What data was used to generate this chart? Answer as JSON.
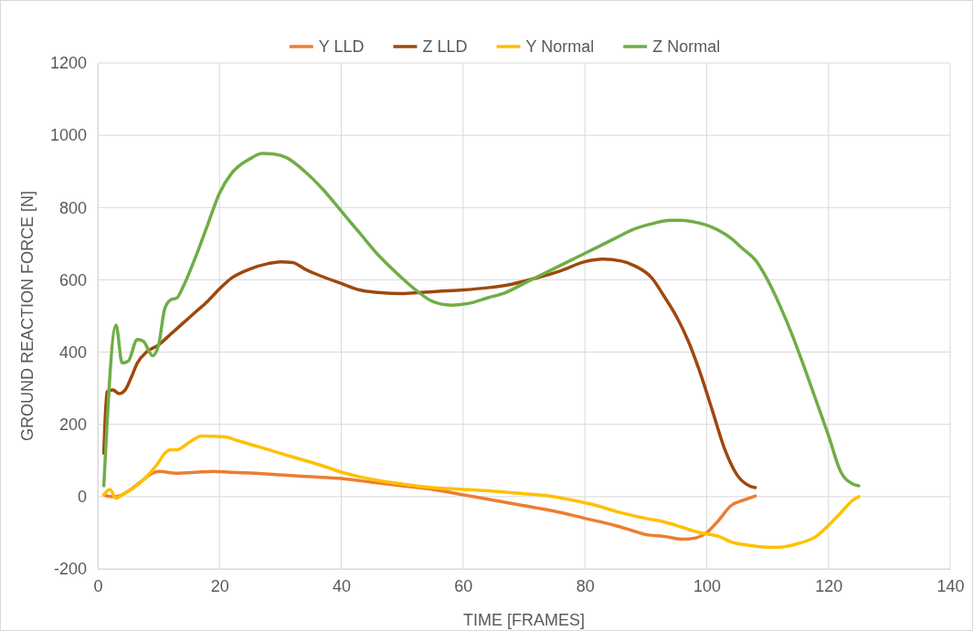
{
  "chart_data": {
    "type": "line",
    "xlabel": "TIME [FRAMES]",
    "ylabel": "GROUND REACTION FORCE [N]",
    "xlim": [
      0,
      140
    ],
    "xticks": [
      0,
      20,
      40,
      60,
      80,
      100,
      120,
      140
    ],
    "ylim": [
      -200,
      1200
    ],
    "yticks": [
      -200,
      0,
      200,
      400,
      600,
      800,
      1000,
      1200
    ],
    "grid": true,
    "legend": "top",
    "marker": "none",
    "line_style": "solid",
    "series": [
      {
        "name": "Y LLD",
        "color": "#ed7d31",
        "x": [
          1,
          2,
          3,
          5,
          7,
          9,
          10,
          13,
          16,
          19,
          22,
          26,
          30,
          35,
          40,
          45,
          50,
          55,
          60,
          65,
          70,
          75,
          80,
          85,
          88,
          90,
          93,
          96,
          98,
          100,
          102,
          104,
          106,
          108
        ],
        "values": [
          5,
          0,
          0,
          15,
          40,
          65,
          70,
          65,
          67,
          70,
          67,
          65,
          60,
          55,
          50,
          40,
          30,
          20,
          5,
          -10,
          -25,
          -40,
          -60,
          -80,
          -95,
          -105,
          -110,
          -118,
          -115,
          -100,
          -65,
          -25,
          -10,
          2
        ]
      },
      {
        "name": "Z LLD",
        "color": "#9e480e",
        "x": [
          1,
          1.5,
          2.5,
          3.5,
          4.5,
          5.5,
          6.5,
          8,
          10,
          12,
          14,
          16,
          18,
          20,
          22,
          25,
          28,
          30,
          32,
          34,
          36,
          40,
          43,
          46,
          50,
          53,
          56,
          60,
          64,
          68,
          72,
          76,
          80,
          83,
          86,
          88,
          91,
          93,
          95,
          97,
          99,
          101,
          103,
          105,
          107,
          108
        ],
        "values": [
          120,
          290,
          295,
          285,
          295,
          330,
          370,
          400,
          420,
          450,
          480,
          510,
          540,
          575,
          605,
          630,
          645,
          650,
          648,
          630,
          615,
          590,
          572,
          565,
          562,
          565,
          568,
          572,
          578,
          588,
          605,
          625,
          650,
          657,
          652,
          640,
          605,
          555,
          500,
          430,
          340,
          235,
          130,
          60,
          30,
          25
        ]
      },
      {
        "name": "Y Normal",
        "color": "#ffc000",
        "x": [
          1,
          2,
          3,
          4,
          6,
          8,
          10,
          11,
          12,
          13,
          15,
          17,
          19,
          21,
          23,
          25,
          28,
          31,
          34,
          37,
          40,
          43,
          47,
          50,
          55,
          60,
          65,
          70,
          74,
          78,
          82,
          86,
          90,
          93,
          96,
          99,
          102,
          104,
          107,
          110,
          112,
          115,
          118,
          120,
          122,
          124,
          125
        ],
        "values": [
          5,
          20,
          -5,
          5,
          25,
          55,
          95,
          120,
          130,
          130,
          150,
          168,
          167,
          165,
          155,
          145,
          130,
          115,
          100,
          85,
          68,
          55,
          42,
          35,
          25,
          20,
          15,
          8,
          2,
          -10,
          -25,
          -45,
          -60,
          -70,
          -85,
          -100,
          -110,
          -125,
          -135,
          -140,
          -140,
          -130,
          -110,
          -80,
          -45,
          -10,
          0
        ]
      },
      {
        "name": "Z Normal",
        "color": "#70ad47",
        "x": [
          1,
          3,
          4,
          5,
          6.5,
          7.5,
          9,
          10,
          11,
          12,
          13,
          14,
          16,
          18,
          20,
          22,
          25,
          27,
          29,
          31,
          34,
          37,
          40,
          43,
          46,
          49,
          52,
          55,
          58,
          61,
          64,
          67,
          70,
          73,
          76,
          79,
          82,
          85,
          88,
          91,
          94,
          96,
          98,
          101,
          104,
          106,
          108,
          110,
          112,
          114,
          116,
          118,
          120,
          122,
          124,
          125
        ],
        "values": [
          30,
          475,
          370,
          375,
          435,
          430,
          390,
          420,
          520,
          545,
          550,
          580,
          660,
          750,
          840,
          895,
          935,
          950,
          948,
          938,
          900,
          850,
          790,
          730,
          670,
          620,
          575,
          540,
          530,
          535,
          550,
          565,
          590,
          615,
          640,
          665,
          690,
          715,
          740,
          755,
          765,
          765,
          760,
          745,
          715,
          685,
          655,
          600,
          530,
          450,
          360,
          265,
          170,
          70,
          35,
          30
        ]
      }
    ]
  }
}
